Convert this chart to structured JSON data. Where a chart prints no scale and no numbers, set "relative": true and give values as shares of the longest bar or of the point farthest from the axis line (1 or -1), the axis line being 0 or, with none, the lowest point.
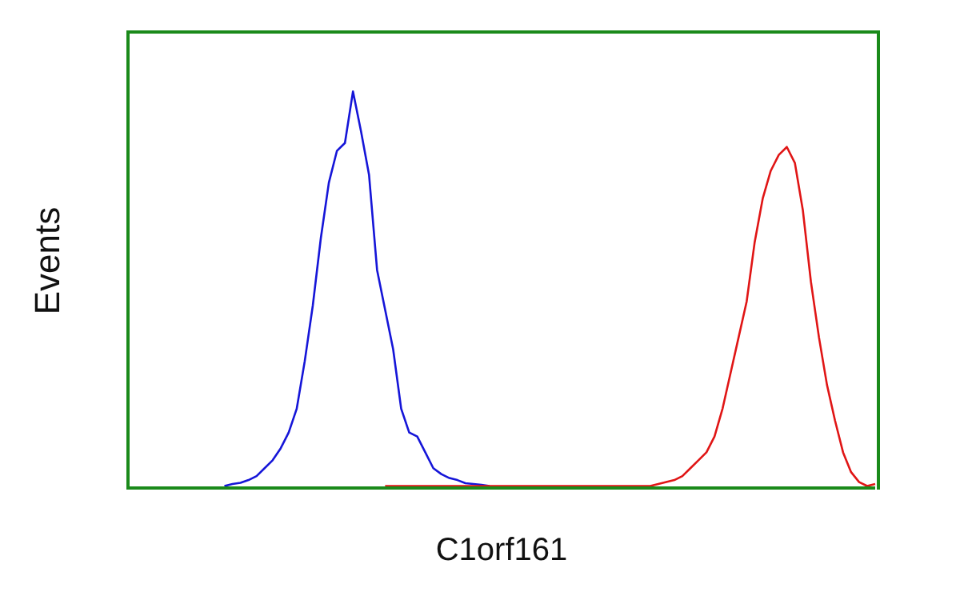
{
  "chart_data": {
    "type": "line",
    "relative": true,
    "xlabel": "C1orf161",
    "ylabel": "Events",
    "grid": false,
    "marker": "none",
    "line_style": "solid",
    "categories": [
      null,
      null,
      null,
      null,
      null,
      null,
      null,
      null,
      null,
      null,
      null,
      null,
      null,
      null,
      null,
      null,
      null,
      null,
      null,
      null,
      null,
      null,
      null,
      null,
      null,
      null,
      null,
      null,
      null,
      null,
      null,
      null,
      null,
      null,
      null,
      null,
      null,
      null,
      null,
      null,
      null,
      null,
      null,
      null,
      null,
      null,
      null,
      null,
      null,
      null,
      null,
      null,
      null,
      null,
      null,
      null,
      null,
      null,
      null,
      null,
      null,
      null,
      null,
      null,
      null,
      null,
      null,
      null,
      null,
      null,
      null,
      null,
      null,
      null,
      null,
      null,
      null,
      null,
      null,
      null,
      null,
      null,
      null,
      null,
      null,
      null,
      null,
      null,
      null,
      null,
      null,
      null,
      null,
      null
    ],
    "series": [
      {
        "color": "#1515d8",
        "values": [
          null,
          null,
          null,
          null,
          null,
          null,
          null,
          null,
          null,
          null,
          null,
          null,
          0.005,
          0.01,
          0.013,
          0.02,
          0.03,
          0.05,
          0.07,
          0.1,
          0.14,
          0.2,
          0.32,
          0.46,
          0.63,
          0.77,
          0.85,
          0.87,
          1,
          0.9,
          0.79,
          0.55,
          0.45,
          0.35,
          0.2,
          0.14,
          0.13,
          0.09,
          0.05,
          0.035,
          0.025,
          0.02,
          0.012,
          0.01,
          0.008,
          0.005,
          null,
          null,
          null,
          null,
          null,
          null,
          null,
          null,
          null,
          null,
          null,
          null,
          null,
          null,
          null,
          null,
          null,
          null,
          null,
          null,
          null,
          null,
          null,
          null,
          null,
          null,
          null,
          null,
          null,
          null,
          null,
          null,
          null,
          null,
          null,
          null,
          null,
          null,
          null,
          null,
          null,
          null,
          null,
          null,
          null,
          null,
          null,
          null
        ]
      },
      {
        "color": "#e01515",
        "values": [
          null,
          null,
          null,
          null,
          null,
          null,
          null,
          null,
          null,
          null,
          null,
          null,
          null,
          null,
          null,
          null,
          null,
          null,
          null,
          null,
          null,
          null,
          null,
          null,
          null,
          null,
          null,
          null,
          null,
          null,
          null,
          null,
          0.005,
          0.005,
          0.005,
          0.005,
          0.005,
          0.005,
          0.005,
          0.005,
          0.005,
          0.005,
          0.005,
          0.005,
          0.005,
          0.005,
          0.005,
          0.005,
          0.005,
          0.005,
          0.005,
          0.005,
          0.005,
          0.005,
          0.005,
          0.005,
          0.005,
          0.005,
          0.005,
          0.005,
          0.005,
          0.005,
          0.005,
          0.005,
          0.005,
          0.005,
          0.01,
          0.015,
          0.02,
          0.03,
          0.05,
          0.07,
          0.09,
          0.13,
          0.2,
          0.29,
          0.38,
          0.47,
          0.62,
          0.73,
          0.8,
          0.84,
          0.86,
          0.82,
          0.7,
          0.52,
          0.38,
          0.26,
          0.17,
          0.09,
          0.04,
          0.015,
          0.005,
          0.01
        ]
      }
    ]
  }
}
